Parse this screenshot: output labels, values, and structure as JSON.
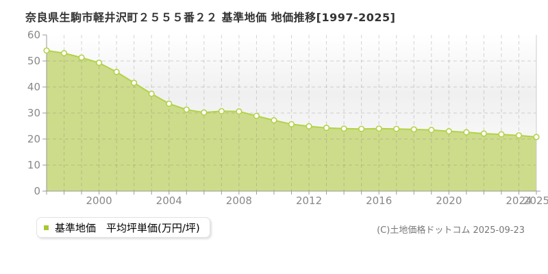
{
  "title": "奈良県生駒市軽井沢町２５５５番２２ 基準地価 地価推移[1997-2025]",
  "legend": {
    "label": "基準地価　平均坪単価(万円/坪)",
    "marker_color": "#a6c832"
  },
  "copyright": "(C)土地価格ドットコム 2025-09-23",
  "colors": {
    "fill": "#cddc8a",
    "line": "#b3d249",
    "marker_fill": "#ffffff",
    "marker_stroke": "#b3d249",
    "grid": "rgba(115,115,115,0.30)",
    "axis": "#999999",
    "plot_border_right": "#cccccc",
    "tick_label": "#888888",
    "title_text": "#333333",
    "copyright_text": "#777777"
  },
  "chart_data": {
    "type": "area",
    "title": "奈良県生駒市軽井沢町２５５５番２２ 基準地価 地価推移[1997-2025]",
    "series_name": "基準地価 平均坪単価(万円/坪)",
    "unit": "万円/坪",
    "x": [
      1997,
      1998,
      1999,
      2000,
      2001,
      2002,
      2003,
      2004,
      2005,
      2006,
      2007,
      2008,
      2009,
      2010,
      2011,
      2012,
      2013,
      2014,
      2015,
      2016,
      2017,
      2018,
      2019,
      2020,
      2021,
      2022,
      2023,
      2024,
      2025
    ],
    "values": [
      54.0,
      53.0,
      51.3,
      49.3,
      45.8,
      41.6,
      37.4,
      33.6,
      31.3,
      30.2,
      30.7,
      30.6,
      28.9,
      27.2,
      25.7,
      24.9,
      24.3,
      24.0,
      23.9,
      24.0,
      23.9,
      23.7,
      23.5,
      23.0,
      22.6,
      22.1,
      21.8,
      21.4,
      20.8
    ],
    "ylim": [
      0,
      60
    ],
    "y_ticks": [
      0,
      10,
      20,
      30,
      40,
      50,
      60
    ],
    "x_tick_labels": [
      2000,
      2004,
      2008,
      2012,
      2016,
      2020,
      2024,
      2025
    ],
    "grid": true,
    "legend_position": "bottom-left"
  }
}
